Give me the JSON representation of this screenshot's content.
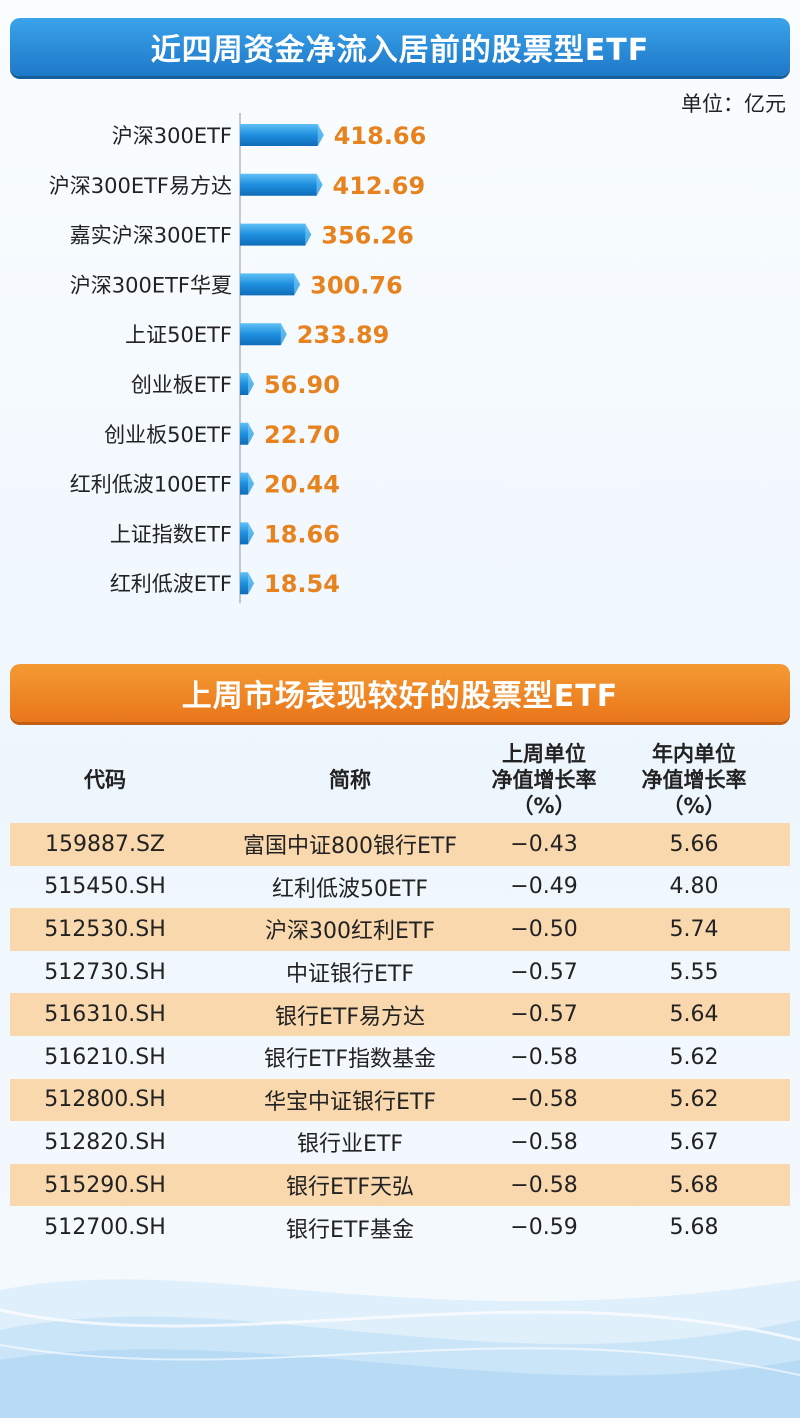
{
  "chart_title": "近四周资金净流入居前的股票型ETF",
  "unit_label": "单位：亿元",
  "chart_data": {
    "type": "bar",
    "orientation": "horizontal",
    "title": "近四周资金净流入居前的股票型ETF",
    "unit": "亿元",
    "categories": [
      "沪深300ETF",
      "沪深300ETF易方达",
      "嘉实沪深300ETF",
      "沪深300ETF华夏",
      "上证50ETF",
      "创业板ETF",
      "创业板50ETF",
      "红利低波100ETF",
      "上证指数ETF",
      "红利低波ETF"
    ],
    "values": [
      418.66,
      412.69,
      356.26,
      300.76,
      233.89,
      56.9,
      22.7,
      20.44,
      18.66,
      18.54
    ],
    "value_labels": [
      "418.66",
      "412.69",
      "356.26",
      "300.76",
      "233.89",
      "56.90",
      "22.70",
      "20.44",
      "18.66",
      "18.54"
    ],
    "bar_color": "#1e8fde",
    "label_color": "#e7831f"
  },
  "table": {
    "title": "上周市场表现较好的股票型ETF",
    "headers": {
      "code": "代码",
      "name": "简称",
      "weekly": [
        "上周单位",
        "净值增长率",
        "（%）"
      ],
      "ytd": [
        "年内单位",
        "净值增长率",
        "（%）"
      ]
    },
    "rows": [
      {
        "code": "159887.SZ",
        "name": "富国中证800银行ETF",
        "weekly": "−0.43",
        "ytd": "5.66"
      },
      {
        "code": "515450.SH",
        "name": "红利低波50ETF",
        "weekly": "−0.49",
        "ytd": "4.80"
      },
      {
        "code": "512530.SH",
        "name": "沪深300红利ETF",
        "weekly": "−0.50",
        "ytd": "5.74"
      },
      {
        "code": "512730.SH",
        "name": "中证银行ETF",
        "weekly": "−0.57",
        "ytd": "5.55"
      },
      {
        "code": "516310.SH",
        "name": "银行ETF易方达",
        "weekly": "−0.57",
        "ytd": "5.64"
      },
      {
        "code": "516210.SH",
        "name": "银行ETF指数基金",
        "weekly": "−0.58",
        "ytd": "5.62"
      },
      {
        "code": "512800.SH",
        "name": "华宝中证银行ETF",
        "weekly": "−0.58",
        "ytd": "5.62"
      },
      {
        "code": "512820.SH",
        "name": "银行业ETF",
        "weekly": "−0.58",
        "ytd": "5.67"
      },
      {
        "code": "515290.SH",
        "name": "银行ETF天弘",
        "weekly": "−0.58",
        "ytd": "5.68"
      },
      {
        "code": "512700.SH",
        "name": "银行ETF基金",
        "weekly": "−0.59",
        "ytd": "5.68"
      }
    ],
    "stripe_color": "#f9d8ae"
  }
}
